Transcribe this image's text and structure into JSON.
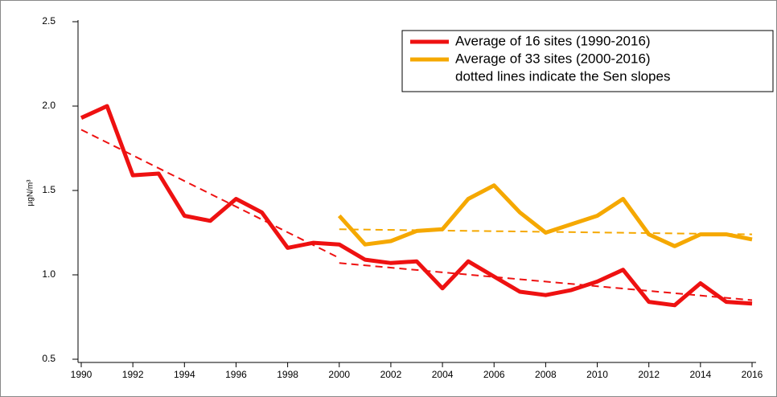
{
  "chart_data": {
    "type": "line",
    "y_label": "µgN/m³",
    "x": [
      1990,
      1991,
      1992,
      1993,
      1994,
      1995,
      1996,
      1997,
      1998,
      1999,
      2000,
      2001,
      2002,
      2003,
      2004,
      2005,
      2006,
      2007,
      2008,
      2009,
      2010,
      2011,
      2012,
      2013,
      2014,
      2015,
      2016
    ],
    "series": [
      {
        "name": "Average of 16 sites (1990-2016)",
        "color": "#ee1111",
        "values": [
          1.93,
          2.0,
          1.59,
          1.6,
          1.35,
          1.32,
          1.45,
          1.37,
          1.16,
          1.19,
          1.18,
          1.09,
          1.07,
          1.08,
          0.92,
          1.08,
          0.99,
          0.9,
          0.88,
          0.91,
          0.96,
          1.03,
          0.84,
          0.82,
          0.95,
          0.84,
          0.83
        ]
      },
      {
        "name": "Average of 33 sites (2000-2016)",
        "color": "#f5a800",
        "values": [
          null,
          null,
          null,
          null,
          null,
          null,
          null,
          null,
          null,
          null,
          1.35,
          1.18,
          1.2,
          1.26,
          1.27,
          1.45,
          1.53,
          1.37,
          1.25,
          1.3,
          1.35,
          1.45,
          1.24,
          1.17,
          1.24,
          1.24,
          1.21
        ]
      }
    ],
    "legend_note": "dotted lines indicate the Sen slopes",
    "trend_lines": [
      {
        "color": "#ee1111",
        "x": [
          1990,
          2000
        ],
        "values": [
          1.86,
          1.1
        ]
      },
      {
        "color": "#ee1111",
        "x": [
          2000,
          2016
        ],
        "values": [
          1.07,
          0.85
        ]
      },
      {
        "color": "#f5a800",
        "x": [
          2000,
          2016
        ],
        "values": [
          1.27,
          1.24
        ]
      }
    ],
    "xlim": [
      1990,
      2016
    ],
    "xticks": [
      1990,
      1992,
      1994,
      1996,
      1998,
      2000,
      2002,
      2004,
      2006,
      2008,
      2010,
      2012,
      2014,
      2016
    ],
    "ylim": [
      0.5,
      2.5
    ],
    "yticks": [
      0.5,
      {
        "value": 1,
        "label": "1.0"
      },
      1.5,
      {
        "value": 2,
        "label": "2.0"
      },
      2.5
    ],
    "legend_position": "upper right"
  }
}
